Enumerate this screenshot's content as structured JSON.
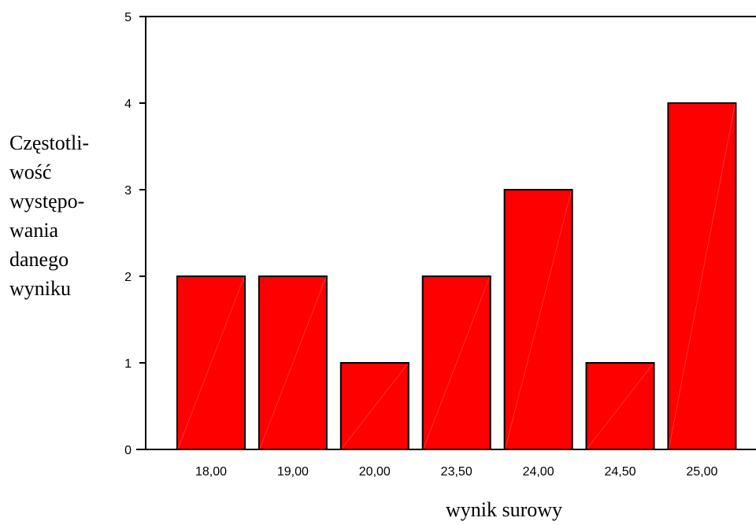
{
  "chart_data": {
    "type": "bar",
    "categories": [
      "18,00",
      "19,00",
      "20,00",
      "23,50",
      "24,00",
      "24,50",
      "25,00"
    ],
    "values": [
      2,
      2,
      1,
      2,
      3,
      1,
      4
    ],
    "ylabel_lines": [
      "Częstotli-",
      "wość",
      "występo-",
      "wania",
      "danego",
      "wyniku"
    ],
    "xlabel": "wynik surowy",
    "ylim": [
      0,
      5
    ],
    "yticks": [
      "0",
      "1",
      "2",
      "3",
      "4",
      "5"
    ],
    "bar_color": "#ff0000",
    "grid": false
  }
}
